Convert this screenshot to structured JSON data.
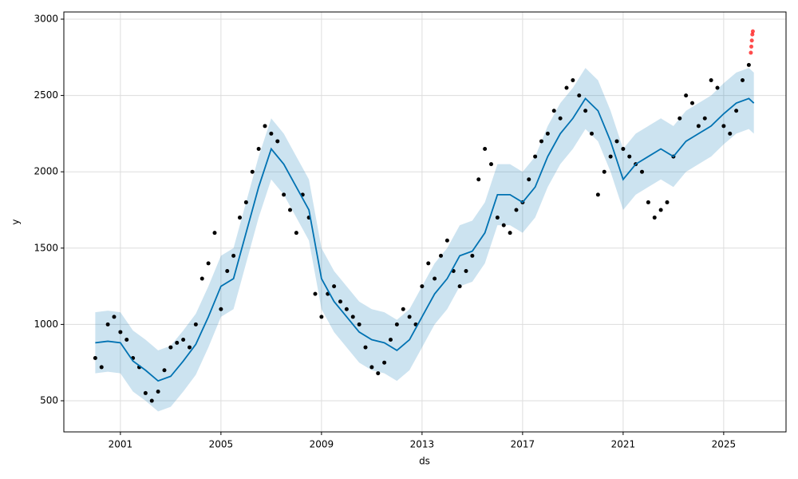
{
  "chart_data": {
    "type": "forecast",
    "xlabel": "ds",
    "ylabel": "y",
    "xlim": [
      1998.75,
      2027.48
    ],
    "ylim": [
      296,
      3047
    ],
    "xticks": [
      2001,
      2005,
      2009,
      2013,
      2017,
      2021,
      2025
    ],
    "yticks": [
      500,
      1000,
      1500,
      2000,
      2500,
      3000
    ],
    "grid": true,
    "observed": {
      "color": "#000000",
      "x": [
        2000,
        2000.25,
        2000.5,
        2000.75,
        2001,
        2001.25,
        2001.5,
        2001.75,
        2002,
        2002.25,
        2002.5,
        2002.75,
        2003,
        2003.25,
        2003.5,
        2003.75,
        2004,
        2004.25,
        2004.5,
        2004.75,
        2005,
        2005.25,
        2005.5,
        2005.75,
        2006,
        2006.25,
        2006.5,
        2006.75,
        2007,
        2007.25,
        2007.5,
        2007.75,
        2008,
        2008.25,
        2008.5,
        2008.75,
        2009,
        2009.25,
        2009.5,
        2009.75,
        2010,
        2010.25,
        2010.5,
        2010.75,
        2011,
        2011.25,
        2011.5,
        2011.75,
        2012,
        2012.25,
        2012.5,
        2012.75,
        2013,
        2013.25,
        2013.5,
        2013.75,
        2014,
        2014.25,
        2014.5,
        2014.75,
        2015,
        2015.25,
        2015.5,
        2015.75,
        2016,
        2016.25,
        2016.5,
        2016.75,
        2017,
        2017.25,
        2017.5,
        2017.75,
        2018,
        2018.25,
        2018.5,
        2018.75,
        2019,
        2019.25,
        2019.5,
        2019.75,
        2020,
        2020.25,
        2020.5,
        2020.75,
        2021,
        2021.25,
        2021.5,
        2021.75,
        2022,
        2022.25,
        2022.5,
        2022.75,
        2023,
        2023.25,
        2023.5,
        2023.75,
        2024,
        2024.25,
        2024.5,
        2024.75,
        2025,
        2025.25,
        2025.5,
        2025.75,
        2026
      ],
      "values": [
        780,
        720,
        1000,
        1050,
        950,
        900,
        780,
        720,
        550,
        500,
        560,
        700,
        850,
        880,
        900,
        850,
        1000,
        1300,
        1400,
        1600,
        1100,
        1350,
        1450,
        1700,
        1800,
        2000,
        2150,
        2300,
        2250,
        2200,
        1850,
        1750,
        1600,
        1850,
        1700,
        1200,
        1050,
        1200,
        1250,
        1150,
        1100,
        1050,
        1000,
        850,
        720,
        680,
        750,
        900,
        1000,
        1100,
        1050,
        1000,
        1250,
        1400,
        1300,
        1450,
        1550,
        1350,
        1250,
        1350,
        1450,
        1950,
        2150,
        2050,
        1700,
        1650,
        1600,
        1750,
        1800,
        1950,
        2100,
        2200,
        2250,
        2400,
        2350,
        2550,
        2600,
        2500,
        2400,
        2250,
        1850,
        2000,
        2100,
        2200,
        2150,
        2100,
        2050,
        2000,
        1800,
        1700,
        1750,
        1800,
        2100,
        2350,
        2500,
        2450,
        2300,
        2350,
        2600,
        2550,
        2300,
        2250,
        2400,
        2600,
        2700
      ]
    },
    "forecast": {
      "color": "#0072B2",
      "x": [
        2000,
        2000.5,
        2001,
        2001.5,
        2002,
        2002.5,
        2003,
        2003.5,
        2004,
        2004.5,
        2005,
        2005.5,
        2006,
        2006.5,
        2007,
        2007.5,
        2008,
        2008.5,
        2009,
        2009.5,
        2010,
        2010.5,
        2011,
        2011.5,
        2012,
        2012.5,
        2013,
        2013.5,
        2014,
        2014.5,
        2015,
        2015.5,
        2016,
        2016.5,
        2017,
        2017.5,
        2018,
        2018.5,
        2019,
        2019.5,
        2020,
        2020.5,
        2021,
        2021.5,
        2022,
        2022.5,
        2023,
        2023.5,
        2024,
        2024.5,
        2025,
        2025.5,
        2026,
        2026.2
      ],
      "values": [
        880,
        890,
        880,
        760,
        700,
        630,
        660,
        760,
        870,
        1050,
        1250,
        1300,
        1600,
        1900,
        2150,
        2050,
        1900,
        1750,
        1300,
        1150,
        1050,
        950,
        900,
        880,
        830,
        900,
        1050,
        1200,
        1300,
        1450,
        1480,
        1600,
        1850,
        1850,
        1800,
        1900,
        2100,
        2250,
        2350,
        2480,
        2400,
        2200,
        1950,
        2050,
        2100,
        2150,
        2100,
        2200,
        2250,
        2300,
        2380,
        2450,
        2480,
        2450
      ],
      "lower": [
        680,
        690,
        680,
        560,
        500,
        430,
        460,
        560,
        670,
        850,
        1050,
        1100,
        1400,
        1700,
        1950,
        1850,
        1700,
        1550,
        1100,
        950,
        850,
        750,
        700,
        680,
        630,
        700,
        850,
        1000,
        1100,
        1250,
        1280,
        1400,
        1650,
        1650,
        1600,
        1700,
        1900,
        2050,
        2150,
        2280,
        2200,
        2000,
        1750,
        1850,
        1900,
        1950,
        1900,
        2000,
        2050,
        2100,
        2180,
        2250,
        2280,
        2250
      ],
      "upper": [
        1080,
        1090,
        1080,
        960,
        900,
        830,
        860,
        960,
        1070,
        1250,
        1450,
        1500,
        1800,
        2100,
        2350,
        2250,
        2100,
        1950,
        1500,
        1350,
        1250,
        1150,
        1100,
        1080,
        1030,
        1100,
        1250,
        1400,
        1500,
        1650,
        1680,
        1800,
        2050,
        2050,
        2000,
        2100,
        2300,
        2450,
        2550,
        2680,
        2600,
        2400,
        2150,
        2250,
        2300,
        2350,
        2300,
        2400,
        2450,
        2500,
        2580,
        2650,
        2680,
        2650
      ]
    },
    "anomalies": {
      "color": "#ff0000",
      "x": [
        2026.08,
        2026.1,
        2026.12,
        2026.14,
        2026.16
      ],
      "values": [
        2780,
        2820,
        2860,
        2900,
        2920
      ]
    }
  }
}
